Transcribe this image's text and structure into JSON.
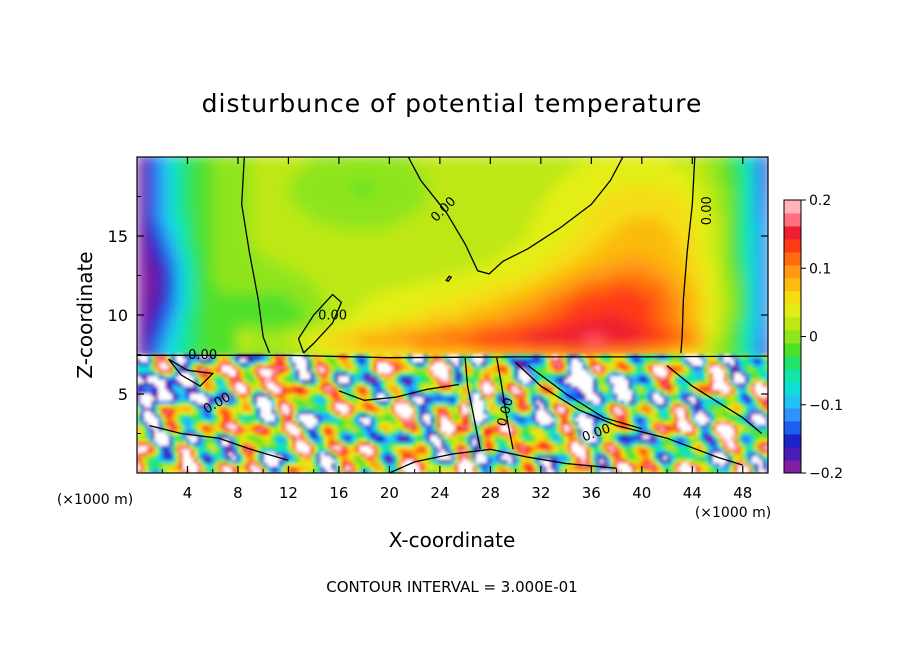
{
  "chart_data": {
    "type": "heatmap",
    "title": "disturbunce of potential temperature",
    "xlabel": "X-coordinate",
    "ylabel": "Z-coordinate",
    "x_unit": "(×1000 m)",
    "y_unit": "(×1000 m)",
    "xlim": [
      0,
      50
    ],
    "ylim": [
      0,
      20
    ],
    "x_ticks": [
      "4",
      "8",
      "12",
      "16",
      "20",
      "24",
      "28",
      "32",
      "36",
      "40",
      "44",
      "48"
    ],
    "y_ticks": [
      "5",
      "10",
      "15"
    ],
    "colorbar": {
      "min": -0.2,
      "max": 0.2,
      "tick_labels": [
        "0.2",
        "0.1",
        "0",
        "−0.1",
        "−0.2"
      ],
      "colors": [
        "#7f1fa3",
        "#4b1cb4",
        "#1b23c8",
        "#1f5cf0",
        "#2f92ff",
        "#22c2f5",
        "#10dfd8",
        "#11e6a8",
        "#22e36a",
        "#4fe02a",
        "#8fe51c",
        "#bde815",
        "#e3ee18",
        "#f5dd12",
        "#fbbb10",
        "#ff9a12",
        "#ff6c10",
        "#ff3a16",
        "#ef1f30",
        "#ff6f80",
        "#ffb4bc"
      ]
    },
    "contour_labels": [
      "0.00",
      "0.00",
      "0.00",
      "0.00",
      "0.00",
      "0.00",
      "0.00"
    ],
    "contour_interval_text": "CONTOUR INTERVAL = 3.000E-01"
  }
}
